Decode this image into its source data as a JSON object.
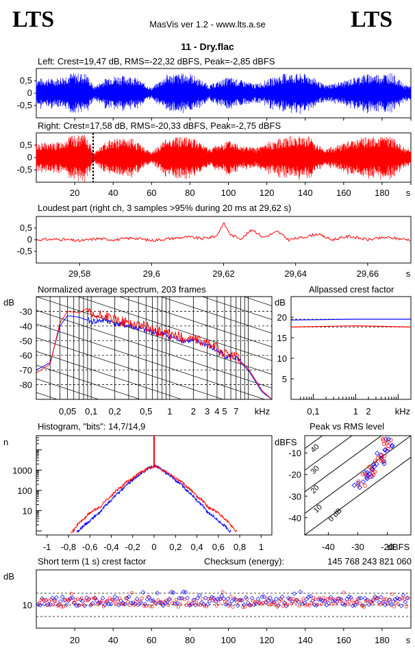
{
  "header": {
    "logo_left": "LTS",
    "logo_right": "LTS",
    "app_title": "MasVis ver 1.2 - www.lts.a.se",
    "file_title": "11 - Dry.flac"
  },
  "colors": {
    "left": "#0000ff",
    "right": "#ff0000",
    "axis": "#000000"
  },
  "chart_data": [
    {
      "id": "left-waveform",
      "type": "line",
      "title": "Left: Crest=19,47 dB, RMS=-22,32 dBFS, Peak=-2,85 dBFS",
      "ylabel": "",
      "xlabel": "s",
      "yticks": [
        "0,5",
        "0",
        "-0,5"
      ],
      "ylim": [
        -1,
        1
      ],
      "xlim": [
        0,
        195
      ],
      "xticks": [
        20,
        40,
        60,
        80,
        100,
        120,
        140,
        160,
        180
      ],
      "xtick_labels_shown": false,
      "envelope": [
        [
          0,
          0.55
        ],
        [
          10,
          0.55
        ],
        [
          18,
          0.75
        ],
        [
          26,
          0.75
        ],
        [
          30,
          0.25
        ],
        [
          38,
          0.65
        ],
        [
          50,
          0.65
        ],
        [
          60,
          0.2
        ],
        [
          68,
          0.7
        ],
        [
          80,
          0.75
        ],
        [
          90,
          0.3
        ],
        [
          100,
          0.6
        ],
        [
          114,
          0.35
        ],
        [
          120,
          0.5
        ],
        [
          130,
          0.75
        ],
        [
          142,
          0.7
        ],
        [
          150,
          0.3
        ],
        [
          160,
          0.45
        ],
        [
          170,
          0.7
        ],
        [
          185,
          0.75
        ],
        [
          192,
          0.3
        ]
      ]
    },
    {
      "id": "right-waveform",
      "type": "line",
      "title": "Right: Crest=17,58 dB, RMS=-20,33 dBFS, Peak=-2,75 dBFS",
      "xlabel": "s",
      "yticks": [
        "0,5",
        "0",
        "-0,5"
      ],
      "ylim": [
        -1,
        1
      ],
      "xlim": [
        0,
        195
      ],
      "xticks": [
        20,
        40,
        60,
        80,
        100,
        120,
        140,
        160,
        180
      ],
      "xtick_labels": [
        "20",
        "40",
        "60",
        "80",
        "100",
        "120",
        "140",
        "160",
        "180",
        "s"
      ],
      "marker_at": 29.62,
      "envelope": [
        [
          0,
          0.55
        ],
        [
          10,
          0.55
        ],
        [
          18,
          0.8
        ],
        [
          26,
          0.85
        ],
        [
          30,
          0.2
        ],
        [
          38,
          0.7
        ],
        [
          50,
          0.7
        ],
        [
          60,
          0.2
        ],
        [
          68,
          0.75
        ],
        [
          80,
          0.8
        ],
        [
          90,
          0.35
        ],
        [
          100,
          0.65
        ],
        [
          114,
          0.35
        ],
        [
          120,
          0.55
        ],
        [
          130,
          0.8
        ],
        [
          142,
          0.8
        ],
        [
          150,
          0.3
        ],
        [
          160,
          0.55
        ],
        [
          170,
          0.75
        ],
        [
          185,
          0.8
        ],
        [
          192,
          0.35
        ]
      ]
    },
    {
      "id": "loudest-part",
      "type": "line",
      "title": "Loudest part (right ch, 3 samples >95% during 20 ms at 29,62 s)",
      "yticks": [
        "0,5",
        "0",
        "-0,5"
      ],
      "ylim": [
        -1,
        1
      ],
      "xlim": [
        29.568,
        29.672
      ],
      "xtick_labels": [
        "29,58",
        "29,6",
        "29,62",
        "29,64",
        "29,66",
        "s"
      ],
      "xticks": [
        29.58,
        29.6,
        29.62,
        29.64,
        29.66
      ],
      "series": [
        {
          "values": [
            [
              29.568,
              0
            ],
            [
              29.575,
              0.02
            ],
            [
              29.58,
              -0.05
            ],
            [
              29.585,
              0.05
            ],
            [
              29.59,
              0.0
            ],
            [
              29.595,
              0.08
            ],
            [
              29.6,
              -0.03
            ],
            [
              29.605,
              0.05
            ],
            [
              29.61,
              0.12
            ],
            [
              29.614,
              0.05
            ],
            [
              29.618,
              0.15
            ],
            [
              29.62,
              0.72
            ],
            [
              29.622,
              0.2
            ],
            [
              29.625,
              0.05
            ],
            [
              29.628,
              0.45
            ],
            [
              29.631,
              0.1
            ],
            [
              29.635,
              0.35
            ],
            [
              29.638,
              0.0
            ],
            [
              29.642,
              0.1
            ],
            [
              29.646,
              0.25
            ],
            [
              29.65,
              0.0
            ],
            [
              29.655,
              0.15
            ],
            [
              29.66,
              0.0
            ],
            [
              29.665,
              0.1
            ],
            [
              29.672,
              0.0
            ]
          ]
        }
      ]
    },
    {
      "id": "avg-spectrum",
      "type": "line",
      "title": "Normalized average spectrum, 203 frames",
      "ylabel": "dB",
      "xlabel": "kHz",
      "yticks": [
        -30,
        -40,
        -50,
        -60,
        -70,
        -80
      ],
      "ylim": [
        -90,
        -20
      ],
      "xscale": "log",
      "xlim": [
        0.02,
        20
      ],
      "xtick_labels": [
        "0,05",
        "0,1",
        "0,2",
        "0,5",
        "1",
        "2",
        "3",
        "4",
        "5",
        "7",
        "kHz"
      ],
      "xticks": [
        0.05,
        0.1,
        0.2,
        0.5,
        1,
        2,
        3,
        4,
        5,
        7
      ],
      "series": [
        {
          "color": "blue",
          "values": [
            [
              0.02,
              -70
            ],
            [
              0.03,
              -65
            ],
            [
              0.04,
              -40
            ],
            [
              0.05,
              -33
            ],
            [
              0.07,
              -34
            ],
            [
              0.1,
              -37
            ],
            [
              0.15,
              -36
            ],
            [
              0.2,
              -38
            ],
            [
              0.3,
              -40
            ],
            [
              0.5,
              -43
            ],
            [
              0.7,
              -45
            ],
            [
              1,
              -47
            ],
            [
              1.5,
              -50
            ],
            [
              2,
              -50
            ],
            [
              3,
              -53
            ],
            [
              4,
              -57
            ],
            [
              5,
              -60
            ],
            [
              7,
              -62
            ],
            [
              10,
              -70
            ],
            [
              15,
              -85
            ],
            [
              20,
              -90
            ]
          ]
        },
        {
          "color": "red",
          "values": [
            [
              0.02,
              -72
            ],
            [
              0.03,
              -66
            ],
            [
              0.04,
              -38
            ],
            [
              0.05,
              -30
            ],
            [
              0.07,
              -31
            ],
            [
              0.09,
              -28
            ],
            [
              0.1,
              -34
            ],
            [
              0.15,
              -33
            ],
            [
              0.2,
              -36
            ],
            [
              0.3,
              -38
            ],
            [
              0.5,
              -40
            ],
            [
              0.7,
              -44
            ],
            [
              1,
              -46
            ],
            [
              1.5,
              -48
            ],
            [
              2,
              -49
            ],
            [
              3,
              -52
            ],
            [
              4,
              -55
            ],
            [
              5,
              -59
            ],
            [
              7,
              -61
            ],
            [
              10,
              -69
            ],
            [
              15,
              -84
            ],
            [
              20,
              -90
            ]
          ]
        }
      ]
    },
    {
      "id": "allpassed-crest",
      "type": "line",
      "title": "Allpassed crest factor",
      "ylabel": "dB",
      "xlabel": "kHz",
      "yticks": [
        20,
        15,
        10,
        5
      ],
      "ylim": [
        0,
        25
      ],
      "xscale": "log",
      "xlim": [
        0.03,
        20
      ],
      "xtick_labels": [
        "0,1",
        "1",
        "2",
        "kHz"
      ],
      "series": [
        {
          "color": "blue",
          "values": [
            [
              0.03,
              19.3
            ],
            [
              1,
              19.5
            ],
            [
              20,
              19.5
            ]
          ]
        },
        {
          "color": "red",
          "values": [
            [
              0.03,
              17.6
            ],
            [
              1,
              17.9
            ],
            [
              20,
              17.6
            ]
          ]
        }
      ]
    },
    {
      "id": "histogram",
      "type": "line",
      "title": "Histogram, \"bits\": 14,7/14,9",
      "ylabel": "n",
      "yscale": "log",
      "ytick_labels": [
        "1000",
        "100",
        "10"
      ],
      "xlim": [
        -1.1,
        1.1
      ],
      "xtick_labels": [
        "-1",
        "-0,8",
        "-0,6",
        "-0,4",
        "-0,2",
        "0",
        "0,2",
        "0,4",
        "0,6",
        "0,8",
        "1"
      ],
      "series": [
        {
          "color": "blue",
          "values": [
            [
              -0.7,
              1
            ],
            [
              -0.6,
              3
            ],
            [
              -0.5,
              8
            ],
            [
              -0.4,
              30
            ],
            [
              -0.3,
              100
            ],
            [
              -0.2,
              300
            ],
            [
              -0.1,
              800
            ],
            [
              0,
              1700
            ],
            [
              0.1,
              800
            ],
            [
              0.2,
              300
            ],
            [
              0.3,
              100
            ],
            [
              0.4,
              30
            ],
            [
              0.5,
              8
            ],
            [
              0.6,
              3
            ],
            [
              0.7,
              1
            ]
          ]
        },
        {
          "color": "red",
          "values": [
            [
              -0.75,
              1
            ],
            [
              -0.65,
              4
            ],
            [
              -0.5,
              15
            ],
            [
              -0.4,
              50
            ],
            [
              -0.3,
              150
            ],
            [
              -0.2,
              400
            ],
            [
              -0.1,
              900
            ],
            [
              0,
              1600
            ],
            [
              0.1,
              900
            ],
            [
              0.2,
              400
            ],
            [
              0.3,
              150
            ],
            [
              0.4,
              50
            ],
            [
              0.5,
              15
            ],
            [
              0.65,
              4
            ],
            [
              0.75,
              1
            ]
          ]
        }
      ]
    },
    {
      "id": "peak-vs-rms",
      "type": "scatter",
      "title": "Peak vs RMS level",
      "ylabel": "dBFS",
      "xlabel": "dBFS",
      "yticks": [
        -10,
        -20,
        -30,
        -40
      ],
      "xlim": [
        -48,
        -12
      ],
      "ylim": [
        -48,
        -2
      ],
      "xtick_labels": [
        "-40",
        "-30",
        "-20",
        "dBFS"
      ],
      "diagonal_labels": [
        "40",
        "30",
        "20",
        "10",
        "0 dB"
      ],
      "series": [
        {
          "color": "blue",
          "values": [
            [
              -30,
              -25
            ],
            [
              -28,
              -22
            ],
            [
              -26,
              -20
            ],
            [
              -24,
              -17
            ],
            [
              -22,
              -14
            ],
            [
              -21,
              -12
            ],
            [
              -20,
              -10
            ],
            [
              -19,
              -7
            ],
            [
              -20,
              -5
            ],
            [
              -22,
              -9
            ],
            [
              -25,
              -15
            ],
            [
              -27,
              -18
            ]
          ]
        },
        {
          "color": "red",
          "values": [
            [
              -29,
              -24
            ],
            [
              -27,
              -21
            ],
            [
              -25,
              -18
            ],
            [
              -23,
              -15
            ],
            [
              -22,
              -13
            ],
            [
              -21,
              -10
            ],
            [
              -20,
              -8
            ],
            [
              -19,
              -6
            ],
            [
              -21,
              -4
            ],
            [
              -23,
              -12
            ],
            [
              -26,
              -16
            ],
            [
              -24,
              -19
            ],
            [
              -20,
              -5
            ]
          ]
        }
      ]
    },
    {
      "id": "short-term-crest",
      "type": "scatter",
      "title": "Short term (1 s) crest factor",
      "checksum_label": "Checksum (energy):",
      "checksum_value": "145 768 243 821 060",
      "ylabel": "dB",
      "ytick_labels": [
        "10"
      ],
      "ylim": [
        0,
        25
      ],
      "xlim": [
        0,
        195
      ],
      "xtick_labels": [
        "20",
        "40",
        "60",
        "80",
        "100",
        "120",
        "140",
        "160",
        "180",
        "s"
      ],
      "series": [
        {
          "color": "blue",
          "mean": 11.5,
          "spread": 2
        },
        {
          "color": "red",
          "mean": 11,
          "spread": 2
        }
      ]
    }
  ]
}
